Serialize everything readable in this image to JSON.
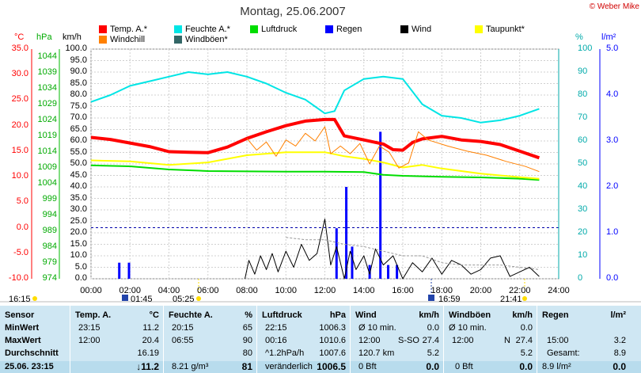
{
  "title": "Montag, 25.06.2007",
  "copyright": "© Weber Mike",
  "colors": {
    "temp": "#ff0000",
    "windchill": "#ff8000",
    "feuchte": "#00ffff",
    "windboeen": "#336666",
    "luftdruck": "#00dd00",
    "regen": "#0000ff",
    "wind": "#000000",
    "taupunkt": "#ffff00"
  },
  "legend": [
    {
      "label": "Temp. A.*",
      "color": "#ff0000"
    },
    {
      "label": "Feuchte A.*",
      "color": "#00e5e5"
    },
    {
      "label": "Luftdruck",
      "color": "#00dd00"
    },
    {
      "label": "Regen",
      "color": "#0000ff"
    },
    {
      "label": "Wind",
      "color": "#000000"
    },
    {
      "label": "Taupunkt*",
      "color": "#ffff00"
    },
    {
      "label": "Windchill",
      "color": "#ff8000"
    },
    {
      "label": "Windböen*",
      "color": "#336666"
    }
  ],
  "axis_units": {
    "temp": "°C",
    "pressure": "hPa",
    "wind": "km/h",
    "humidity": "%",
    "rain": "l/m²"
  },
  "chart_data": {
    "type": "line",
    "title": "Montag, 25.06.2007",
    "x_ticks": [
      "00:00",
      "02:00",
      "04:00",
      "06:00",
      "08:00",
      "10:00",
      "12:00",
      "14:00",
      "16:00",
      "18:00",
      "20:00",
      "22:00",
      "24:00"
    ],
    "xlim": [
      0,
      24
    ],
    "axes": {
      "temp": {
        "unit": "°C",
        "ylim": [
          -10,
          35
        ],
        "ticks": [
          "35.0",
          "30.0",
          "25.0",
          "20.0",
          "15.0",
          "10.0",
          "5.0",
          "0.0",
          "-5.0",
          "-10.0"
        ]
      },
      "pressure": {
        "unit": "hPa",
        "ylim": [
          974,
          1046.5
        ],
        "ticks": [
          "1044",
          "1039",
          "1034",
          "1029",
          "1024",
          "1019",
          "1014",
          "1009",
          "1004",
          "999",
          "994",
          "989",
          "984",
          "979",
          "974"
        ]
      },
      "wind": {
        "unit": "km/h",
        "ylim": [
          0,
          100
        ],
        "ticks": [
          "100.0",
          "95.0",
          "90.0",
          "85.0",
          "80.0",
          "75.0",
          "70.0",
          "65.0",
          "60.0",
          "55.0",
          "50.0",
          "45.0",
          "40.0",
          "35.0",
          "30.0",
          "25.0",
          "20.0",
          "15.0",
          "10.0",
          "5.0",
          "0.0"
        ]
      },
      "humidity": {
        "unit": "%",
        "ylim": [
          0,
          100
        ],
        "ticks": [
          "100",
          "90",
          "80",
          "70",
          "60",
          "50",
          "40",
          "30",
          "20",
          "10",
          "0"
        ]
      },
      "rain": {
        "unit": "l/m²",
        "ylim": [
          0,
          5
        ],
        "ticks": [
          "5.0",
          "4.0",
          "3.0",
          "2.0",
          "1.0",
          "0.0"
        ]
      }
    },
    "series": [
      {
        "name": "Temp. A.*",
        "axis": "temp",
        "color": "#ff0000",
        "x": [
          0,
          1,
          2,
          3,
          4,
          5,
          6,
          7,
          8,
          9,
          10,
          11,
          12,
          12.5,
          13,
          14,
          15,
          15.5,
          16,
          16.5,
          17,
          18,
          19,
          20,
          21,
          22,
          23
        ],
        "y": [
          17.7,
          17.3,
          16.6,
          15.9,
          14.9,
          14.8,
          14.7,
          15.8,
          17.5,
          18.8,
          20.0,
          20.9,
          21.2,
          21.2,
          18.0,
          17.2,
          16.4,
          15.3,
          15.2,
          16.7,
          17.4,
          17.9,
          17.2,
          16.9,
          16.3,
          15.0,
          13.7
        ]
      },
      {
        "name": "Feuchte A.*",
        "axis": "humidity",
        "color": "#00e5e5",
        "x": [
          0,
          1,
          2,
          3,
          4,
          5,
          6,
          7,
          8,
          9,
          10,
          11,
          12,
          12.5,
          13,
          14,
          15,
          16,
          17,
          18,
          19,
          20,
          21,
          22,
          23
        ],
        "y": [
          77,
          80,
          84,
          86,
          88,
          90,
          89,
          90,
          88,
          85,
          81,
          78,
          72,
          73,
          82,
          87,
          88,
          87,
          76,
          71,
          70,
          68,
          69,
          71,
          74
        ]
      },
      {
        "name": "Luftdruck",
        "axis": "pressure",
        "color": "#00dd00",
        "x": [
          0,
          2,
          4,
          6,
          8,
          10,
          12,
          14,
          15,
          16,
          18,
          20,
          22,
          23
        ],
        "y": [
          1009.8,
          1009.5,
          1008.5,
          1008.0,
          1007.9,
          1007.8,
          1007.8,
          1007.7,
          1006.8,
          1006.5,
          1006.2,
          1006.0,
          1005.6,
          1005.2
        ]
      },
      {
        "name": "Taupunkt*",
        "axis": "temp",
        "color": "#ffff00",
        "x": [
          0,
          2,
          4,
          6,
          8,
          10,
          12,
          13,
          14,
          15,
          16,
          17,
          18,
          20,
          22,
          23
        ],
        "y": [
          13.2,
          13.0,
          12.3,
          12.8,
          14.2,
          14.8,
          14.8,
          14.0,
          13.5,
          12.8,
          11.8,
          12.3,
          11.6,
          10.6,
          9.9,
          9.6
        ]
      },
      {
        "name": "Windchill",
        "axis": "temp",
        "color": "#ff8000",
        "x": [
          8,
          8.5,
          9,
          9.5,
          10,
          10.5,
          11,
          11.5,
          12,
          12.3,
          12.8,
          13.3,
          13.8,
          14.3,
          14.8,
          15.3,
          15.8,
          16.3,
          16.8,
          17.3,
          18.3,
          19.3,
          20.3,
          21.3,
          22.3,
          23
        ],
        "y": [
          17.5,
          15.2,
          16.8,
          14.0,
          17.2,
          16.0,
          18.5,
          17.0,
          19.8,
          14.5,
          16.0,
          14.5,
          16.5,
          12.5,
          16.0,
          14.8,
          11.7,
          12.7,
          18.8,
          17.2,
          16.0,
          15.0,
          14.2,
          13.0,
          12.0,
          11.0
        ]
      },
      {
        "name": "Wind",
        "axis": "wind",
        "color": "#000000",
        "x": [
          7.9,
          8.1,
          8.4,
          8.7,
          9.0,
          9.3,
          9.6,
          10.0,
          10.4,
          10.8,
          11.2,
          11.6,
          12.0,
          12.3,
          12.6,
          13.0,
          13.3,
          13.6,
          14.0,
          14.3,
          14.6,
          15.0,
          15.5,
          16.0,
          16.5,
          17.0,
          17.5,
          18.0,
          18.5,
          19.0,
          19.5,
          20.0,
          20.5,
          21.0,
          21.5,
          22.0,
          22.5,
          23.0
        ],
        "y": [
          0,
          8,
          2,
          10,
          4,
          11,
          3,
          12,
          5,
          15,
          8,
          11,
          26,
          6,
          14,
          0,
          12,
          4,
          10,
          2,
          13,
          6,
          10,
          0,
          7,
          3,
          9,
          2,
          8,
          6,
          2,
          4,
          9,
          10,
          1,
          3,
          5,
          1
        ]
      },
      {
        "name": "Windböen*",
        "axis": "wind",
        "color": "#999999",
        "x": [
          10,
          11,
          12,
          13,
          14,
          15,
          16,
          17,
          18,
          19,
          20,
          21,
          22,
          23
        ],
        "y": [
          18,
          17,
          17,
          15,
          14,
          12,
          10,
          10,
          7,
          6,
          6,
          6,
          5,
          4
        ]
      }
    ],
    "rain": {
      "name": "Regen",
      "axis": "rain",
      "color": "#0000ff",
      "x": [
        1.45,
        1.95,
        12.6,
        13.1,
        13.4,
        14.3,
        14.85,
        15.25,
        15.7
      ],
      "y": [
        0.35,
        0.35,
        1.1,
        2.0,
        0.7,
        0.3,
        3.2,
        0.3,
        0.3
      ]
    },
    "timeline": {
      "start": "16:15",
      "sunrise": "05:25",
      "sunset": "21:41",
      "moonset": "01:45",
      "moonrise": "16:59"
    }
  },
  "table": {
    "sensor": {
      "header": "Sensor",
      "rows": [
        "MinWert",
        "MaxWert",
        "Durchschnitt"
      ],
      "footer": "25.06. 23:15"
    },
    "temp": {
      "header": "Temp. A.",
      "unit": "°C",
      "rows": [
        [
          "23:15",
          "11.2"
        ],
        [
          "12:00",
          "20.4"
        ],
        [
          "",
          "16.19"
        ]
      ],
      "footer": "↓11.2"
    },
    "feuchte": {
      "header": "Feuchte A.",
      "unit": "%",
      "rows": [
        [
          "20:15",
          "65"
        ],
        [
          "06:55",
          "90"
        ],
        [
          "",
          "80"
        ]
      ],
      "footer_left": "8.21 g/m³",
      "footer": "81"
    },
    "luftdruck": {
      "header": "Luftdruck",
      "unit": "hPa",
      "rows": [
        [
          "22:15",
          "1006.3"
        ],
        [
          "00:16",
          "1010.6"
        ],
        [
          "^1.2hPa/h",
          "1007.6"
        ]
      ],
      "footer_left": "veränderlich",
      "footer": "1006.5"
    },
    "wind": {
      "header": "Wind",
      "unit": "km/h",
      "rows": [
        [
          "Ø 10 min.",
          "",
          "0.0"
        ],
        [
          "12:00",
          "S-SO",
          "27.4"
        ],
        [
          "120.7 km",
          "",
          "5.2"
        ]
      ],
      "footer_left": "0 Bft",
      "footer": "0.0"
    },
    "windboeen": {
      "header": "Windböen",
      "unit": "km/h",
      "rows": [
        [
          "Ø 10 min.",
          "",
          "0.0"
        ],
        [
          "12:00",
          "N",
          "27.4"
        ],
        [
          "",
          "",
          "5.2"
        ]
      ],
      "footer_left": "0 Bft",
      "footer": "0.0"
    },
    "regen": {
      "header": "Regen",
      "unit": "l/m²",
      "rows": [
        [
          "",
          "",
          ""
        ],
        [
          "15:00",
          "",
          "3.2"
        ],
        [
          "Gesamt:",
          "",
          "8.9"
        ]
      ],
      "footer_left": "8.9 l/m²",
      "footer": "0.0"
    }
  }
}
